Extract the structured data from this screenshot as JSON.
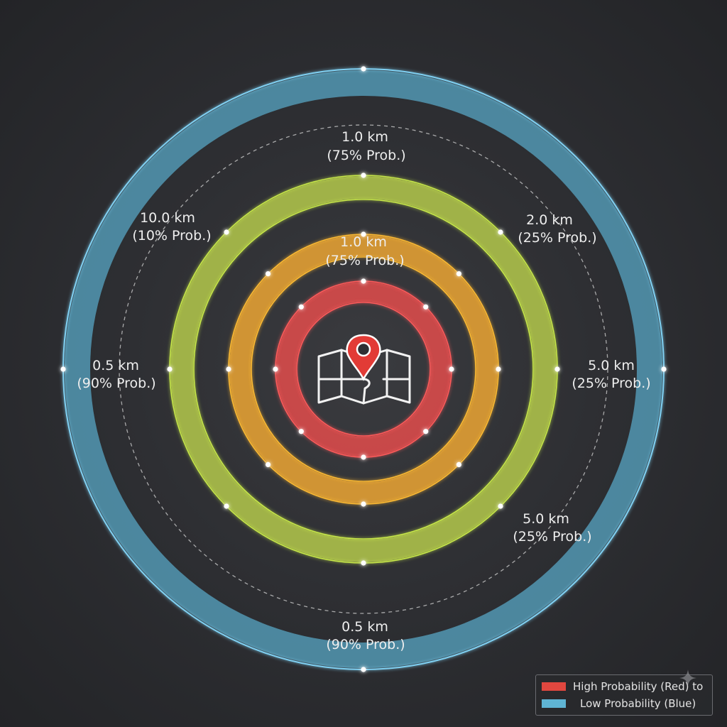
{
  "colors": {
    "background": "#2e2f33",
    "ring_red": "#d14a4a",
    "ring_red_edge": "#ff5a5a",
    "ring_orange": "#d99a34",
    "ring_orange_edge": "#ffbb33",
    "ring_yellow_green": "#a7b94a",
    "ring_yellow_green_edge": "#c8e84a",
    "ring_blue": "#4f8fa8",
    "ring_blue_edge": "#7fd0f2",
    "marker": "#e23b36",
    "node_glow": "#ffffff"
  },
  "center_icon": "map-with-location-pin-icon",
  "labels": {
    "top_inner": {
      "distance": "1.0 km",
      "probability": "(75% Prob.)"
    },
    "top_outer": {
      "distance": "1.0 km",
      "probability": "(75% Prob.)"
    },
    "upper_left": {
      "distance": "10.0 km",
      "probability": "(10% Prob.)"
    },
    "upper_right": {
      "distance": "2.0 km",
      "probability": "(25% Prob.)"
    },
    "left": {
      "distance": "0.5 km",
      "probability": "(90% Prob.)"
    },
    "right": {
      "distance": "5.0 km",
      "probability": "(25% Prob.)"
    },
    "lower_right": {
      "distance": "5.0 km",
      "probability": "(25% Prob.)"
    },
    "bottom": {
      "distance": "0.5 km",
      "probability": "(90% Prob.)"
    }
  },
  "legend": {
    "high_label": "High Probability (Red) to",
    "low_label": "Low Probability (Blue)",
    "high_color": "#e0473f",
    "low_color": "#5fb4d4"
  }
}
